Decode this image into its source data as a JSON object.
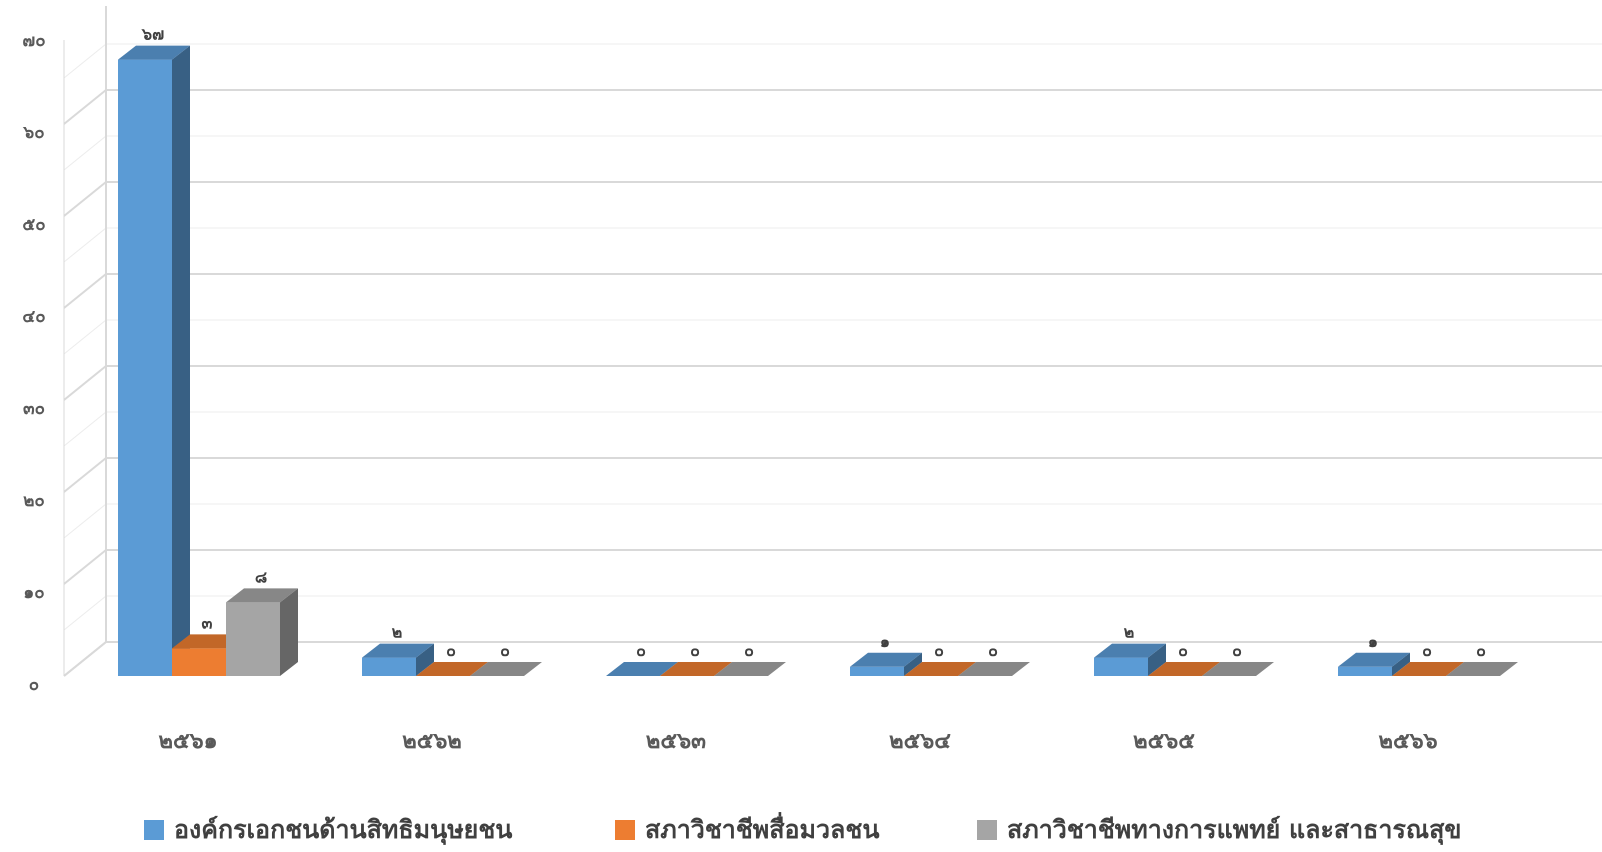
{
  "chart_data": {
    "type": "bar",
    "categories": [
      "๒๕๖๑",
      "๒๕๖๒",
      "๒๕๖๓",
      "๒๕๖๔",
      "๒๕๖๕",
      "๒๕๖๖"
    ],
    "series": [
      {
        "name": "องค์กรเอกชนด้านสิทธิมนุษยชน",
        "values": [
          67,
          2,
          0,
          1,
          2,
          1
        ],
        "labels": [
          "๖๗",
          "๒",
          "๐",
          "๑",
          "๒",
          "๑"
        ],
        "color": "#5B9BD5"
      },
      {
        "name": "สภาวิชาชีพสื่อมวลชน",
        "values": [
          3,
          0,
          0,
          0,
          0,
          0
        ],
        "labels": [
          "๓",
          "๐",
          "๐",
          "๐",
          "๐",
          "๐"
        ],
        "color": "#ED7D31"
      },
      {
        "name": "สภาวิชาชีพทางการแพทย์ และสาธารณสุข",
        "values": [
          8,
          0,
          0,
          0,
          0,
          0
        ],
        "labels": [
          "๘",
          "๐",
          "๐",
          "๐",
          "๐",
          "๐"
        ],
        "color": "#A5A5A5"
      }
    ],
    "ylim": [
      0,
      70
    ],
    "yticks": [
      "๐",
      "๑๐",
      "๒๐",
      "๓๐",
      "๔๐",
      "๕๐",
      "๖๐",
      "๗๐"
    ],
    "grid": true,
    "legend_position": "bottom",
    "style": "3d-clustered-column"
  }
}
